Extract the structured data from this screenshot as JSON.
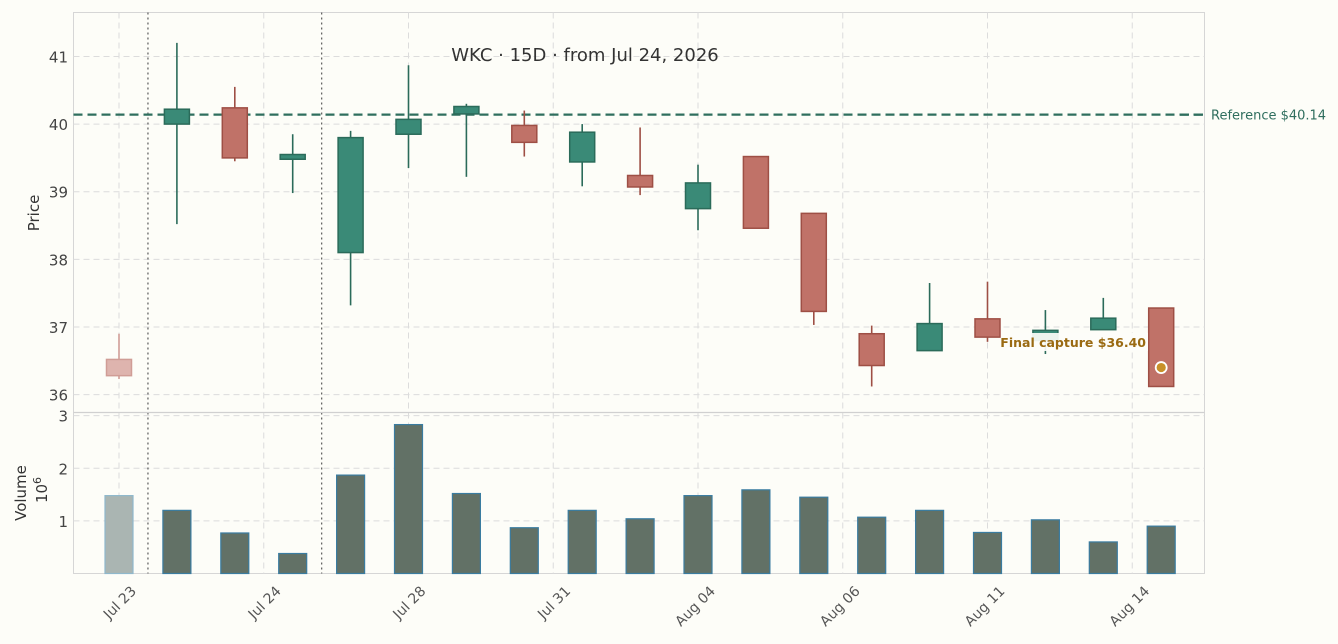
{
  "chart_data": {
    "type": "candlestick",
    "title": "WKC  ·  15D  ·  from Jul 24, 2026",
    "price_axis": {
      "label": "Price",
      "ylim": [
        35.75,
        41.65
      ],
      "ticks": [
        36,
        37,
        38,
        39,
        40,
        41
      ]
    },
    "volume_axis": {
      "label": "Volume",
      "multiplier": "10^6",
      "ylim": [
        0,
        3.05
      ],
      "ticks": [
        1,
        2,
        3
      ]
    },
    "x_tick_labels": [
      {
        "index": 0,
        "label": "Jul 23"
      },
      {
        "index": 2.5,
        "label": "Jul 24"
      },
      {
        "index": 5,
        "label": "Jul 28"
      },
      {
        "index": 7.5,
        "label": "Jul 31"
      },
      {
        "index": 10,
        "label": "Aug 04"
      },
      {
        "index": 12.5,
        "label": "Aug 06"
      },
      {
        "index": 15,
        "label": "Aug 11"
      },
      {
        "index": 17.5,
        "label": "Aug 14"
      }
    ],
    "candles": [
      {
        "o": 36.28,
        "h": 36.9,
        "l": 36.23,
        "c": 36.52,
        "v": 1.48,
        "faded": true
      },
      {
        "o": 40.0,
        "h": 41.2,
        "l": 38.52,
        "c": 40.22,
        "v": 1.2
      },
      {
        "o": 40.24,
        "h": 40.55,
        "l": 39.45,
        "c": 39.5,
        "v": 0.77
      },
      {
        "o": 39.48,
        "h": 39.85,
        "l": 38.98,
        "c": 39.55,
        "v": 0.38
      },
      {
        "o": 38.1,
        "h": 39.9,
        "l": 37.32,
        "c": 39.8,
        "v": 1.87
      },
      {
        "o": 39.85,
        "h": 40.87,
        "l": 39.35,
        "c": 40.07,
        "v": 2.83
      },
      {
        "o": 40.15,
        "h": 40.3,
        "l": 39.22,
        "c": 40.26,
        "v": 1.52
      },
      {
        "o": 39.98,
        "h": 40.2,
        "l": 39.52,
        "c": 39.73,
        "v": 0.87
      },
      {
        "o": 39.44,
        "h": 40.0,
        "l": 39.08,
        "c": 39.88,
        "v": 1.2
      },
      {
        "o": 39.24,
        "h": 39.95,
        "l": 38.95,
        "c": 39.07,
        "v": 1.04
      },
      {
        "o": 38.75,
        "h": 39.4,
        "l": 38.43,
        "c": 39.13,
        "v": 1.48
      },
      {
        "o": 39.52,
        "h": 39.52,
        "l": 38.46,
        "c": 38.46,
        "v": 1.59
      },
      {
        "o": 38.68,
        "h": 38.68,
        "l": 37.03,
        "c": 37.23,
        "v": 1.45
      },
      {
        "o": 36.9,
        "h": 37.02,
        "l": 36.12,
        "c": 36.43,
        "v": 1.07
      },
      {
        "o": 36.65,
        "h": 37.65,
        "l": 36.65,
        "c": 37.05,
        "v": 1.2
      },
      {
        "o": 37.12,
        "h": 37.67,
        "l": 36.78,
        "c": 36.85,
        "v": 0.78
      },
      {
        "o": 36.8,
        "h": 37.25,
        "l": 36.6,
        "c": 36.95,
        "v": 1.02
      },
      {
        "o": 36.96,
        "h": 37.43,
        "l": 36.96,
        "c": 37.13,
        "v": 0.6
      },
      {
        "o": 37.28,
        "h": 37.28,
        "l": 36.12,
        "c": 36.12,
        "v": 0.9
      }
    ],
    "reference_line": {
      "value": 40.14,
      "label": "Reference $40.14"
    },
    "final_marker": {
      "index": 18,
      "value": 36.4,
      "label": "Final capture $36.40"
    },
    "vertical_markers": [
      0.5,
      3.5
    ],
    "grid": true,
    "colors": {
      "up": "#3a8a77",
      "up_edge": "#2b6b5a",
      "down": "#c07268",
      "down_edge": "#9e4f45",
      "faded": "#deb4ae",
      "volume": "#627166",
      "volume_edge": "#3a7ca0",
      "volume_faded": "#aab5b2",
      "reference": "#2f6e5e",
      "annotation": "#9a6a12"
    }
  }
}
